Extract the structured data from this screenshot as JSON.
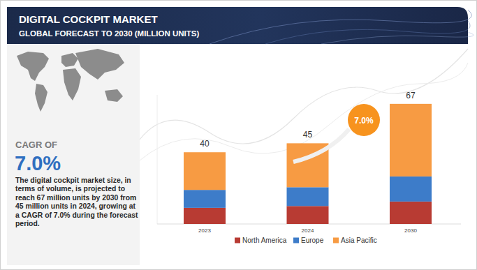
{
  "chart_data": {
    "type": "bar",
    "title": "DIGITAL COCKPIT MARKET",
    "subtitle": "GLOBAL FORECAST TO 2030 (MILLION UNITS)",
    "categories": [
      "2023",
      "2024",
      "2030"
    ],
    "stacked": true,
    "series": [
      {
        "name": "North America",
        "color": "#b83b33",
        "values": [
          9,
          10,
          12.5
        ]
      },
      {
        "name": "Europe",
        "color": "#3d7cc9",
        "values": [
          10,
          10.5,
          14
        ]
      },
      {
        "name": "Asia Pacific",
        "color": "#f79b43",
        "values": [
          21,
          24.5,
          40.5
        ]
      }
    ],
    "totals": [
      40,
      45,
      67
    ],
    "ylim": [
      0,
      72
    ],
    "tick_labels": "x",
    "legend": "bottom",
    "annotations": {
      "cagr_heading": "CAGR OF",
      "cagr_value": "7.0%",
      "summary": "The digital cockpit market size, in terms of volume, is projected to reach 67 million units by 2030 from 45 million units in 2024, growing at a CAGR of 7.0% during the forecast period.",
      "callout": "7.0%"
    }
  }
}
